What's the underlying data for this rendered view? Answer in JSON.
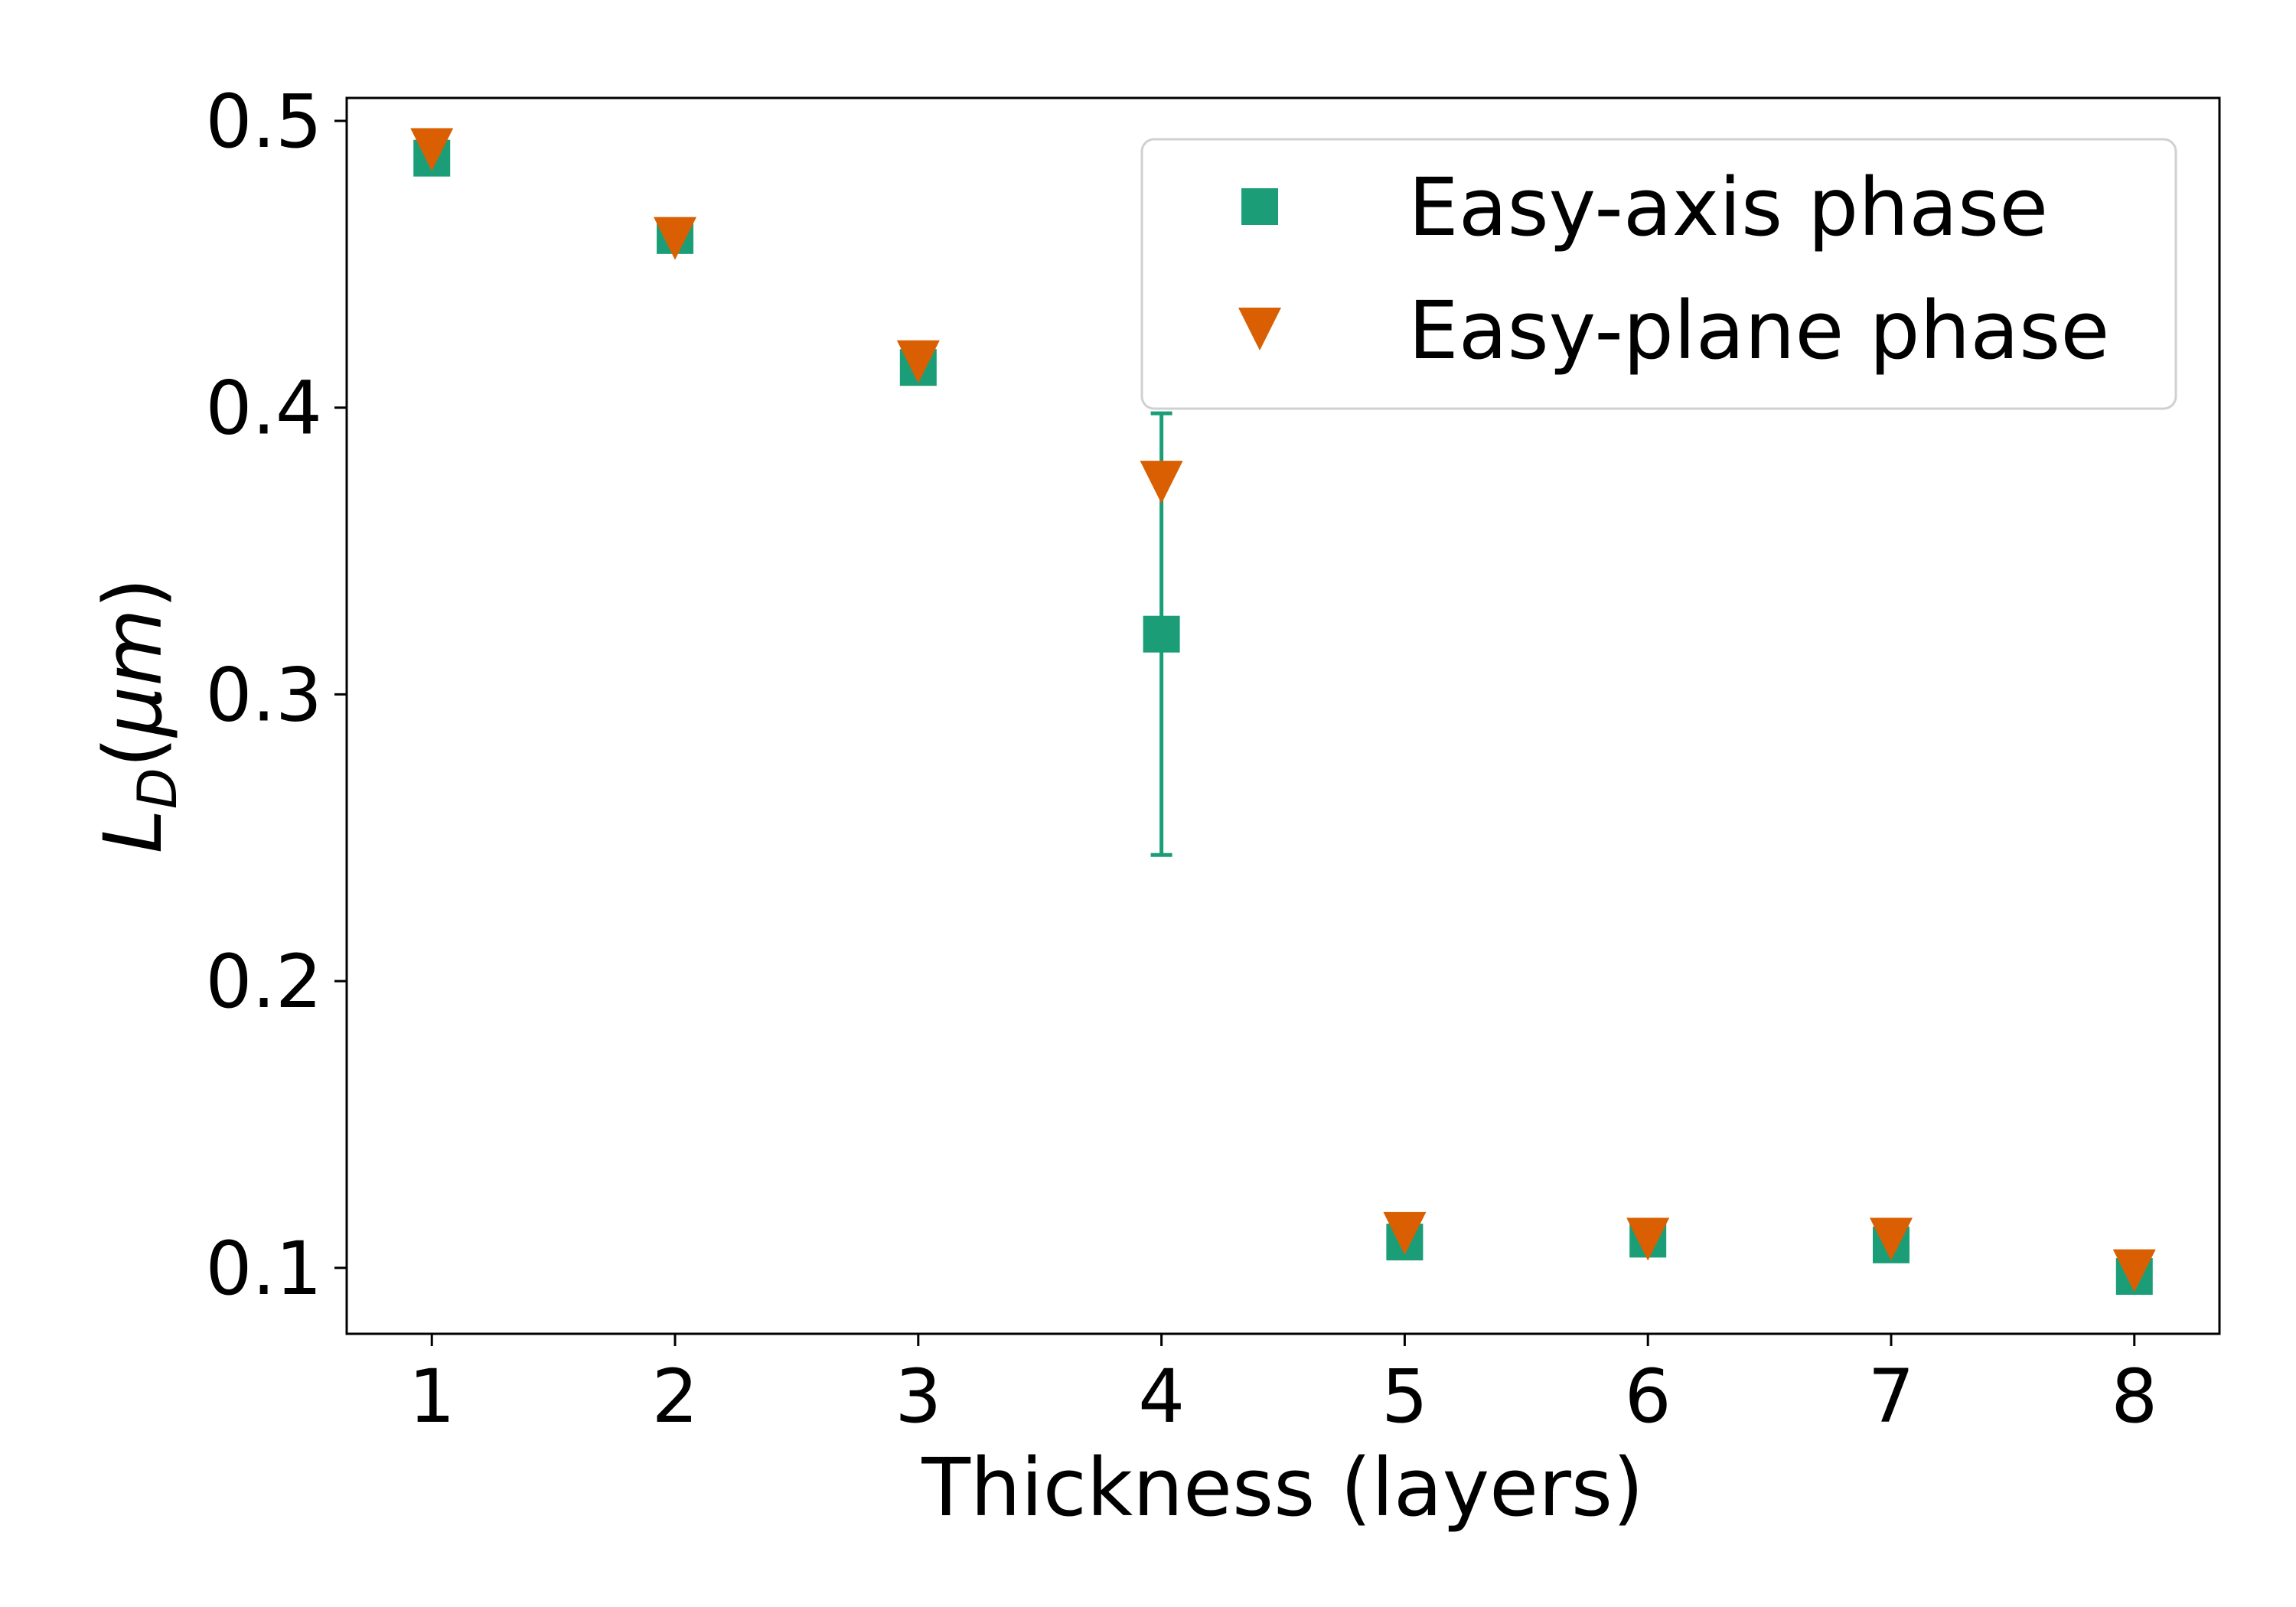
{
  "chart_data": {
    "type": "scatter",
    "xlabel": "Thickness (layers)",
    "ylabel": {
      "main": "L",
      "sub": "D",
      "unit_prefix": "(",
      "unit": "μm",
      "unit_suffix": ")"
    },
    "xlim": [
      0.65,
      8.35
    ],
    "ylim": [
      0.077,
      0.508
    ],
    "xticks": [
      1,
      2,
      3,
      4,
      5,
      6,
      7,
      8
    ],
    "yticks": [
      0.1,
      0.2,
      0.3,
      0.4,
      0.5
    ],
    "ytick_labels": [
      "0.1",
      "0.2",
      "0.3",
      "0.4",
      "0.5"
    ],
    "grid": false,
    "legend_position": "top-right",
    "series": [
      {
        "name": "Easy-axis phase",
        "marker": "square",
        "color": "#1b9e77",
        "x": [
          1,
          2,
          3,
          4,
          5,
          6,
          7,
          8
        ],
        "y": [
          0.487,
          0.46,
          0.414,
          0.321,
          0.109,
          0.11,
          0.108,
          0.097
        ],
        "yerr": [
          0,
          0,
          0,
          0.077,
          0,
          0,
          0,
          0
        ]
      },
      {
        "name": "Easy-plane phase",
        "marker": "triangle-down",
        "color": "#d95f02",
        "x": [
          1,
          2,
          3,
          4,
          5,
          6,
          7,
          8
        ],
        "y": [
          0.49,
          0.459,
          0.416,
          0.374,
          0.112,
          0.11,
          0.11,
          0.099
        ],
        "yerr": [
          0,
          0,
          0,
          0,
          0,
          0,
          0,
          0
        ]
      }
    ]
  }
}
